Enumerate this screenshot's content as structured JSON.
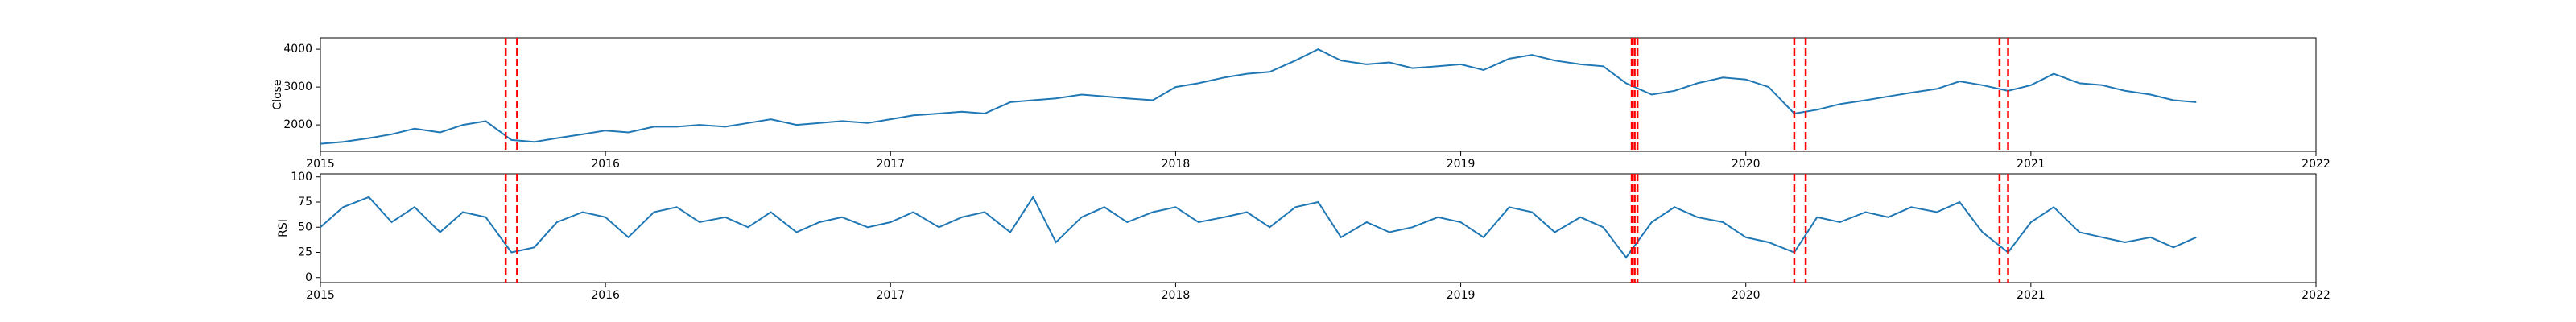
{
  "chart_data": [
    {
      "type": "line",
      "ylabel": "Close",
      "x": [
        2015.0,
        2015.08,
        2015.17,
        2015.25,
        2015.33,
        2015.42,
        2015.5,
        2015.58,
        2015.67,
        2015.75,
        2015.83,
        2015.92,
        2016.0,
        2016.08,
        2016.17,
        2016.25,
        2016.33,
        2016.42,
        2016.5,
        2016.58,
        2016.67,
        2016.75,
        2016.83,
        2016.92,
        2017.0,
        2017.08,
        2017.17,
        2017.25,
        2017.33,
        2017.42,
        2017.5,
        2017.58,
        2017.67,
        2017.75,
        2017.83,
        2017.92,
        2018.0,
        2018.08,
        2018.17,
        2018.25,
        2018.33,
        2018.42,
        2018.5,
        2018.58,
        2018.67,
        2018.75,
        2018.83,
        2018.92,
        2019.0,
        2019.08,
        2019.17,
        2019.25,
        2019.33,
        2019.42,
        2019.5,
        2019.58,
        2019.67,
        2019.75,
        2019.83,
        2019.92,
        2020.0,
        2020.08,
        2020.17,
        2020.25,
        2020.33,
        2020.42,
        2020.5,
        2020.58,
        2020.67,
        2020.75,
        2020.83,
        2020.92,
        2021.0,
        2021.08,
        2021.17,
        2021.25,
        2021.33,
        2021.42,
        2021.5,
        2021.58
      ],
      "series": [
        {
          "color": "#1f77b4",
          "values": [
            1500,
            1550,
            1650,
            1750,
            1900,
            1800,
            2000,
            2100,
            1600,
            1550,
            1650,
            1750,
            1850,
            1800,
            1950,
            1950,
            2000,
            1950,
            2050,
            2150,
            2000,
            2050,
            2100,
            2050,
            2150,
            2250,
            2300,
            2350,
            2300,
            2600,
            2650,
            2700,
            2800,
            2750,
            2700,
            2650,
            3000,
            3100,
            3250,
            3350,
            3400,
            3700,
            4000,
            3700,
            3600,
            3650,
            3500,
            3550,
            3600,
            3450,
            3750,
            3850,
            3700,
            3600,
            3550,
            3100,
            2800,
            2900,
            3100,
            3250,
            3200,
            3000,
            2300,
            2400,
            2550,
            2650,
            2750,
            2850,
            2950,
            3150,
            3050,
            2900,
            3050,
            3350,
            3100,
            3050,
            2900,
            2800,
            2650,
            2600
          ]
        }
      ],
      "vlines": [
        2015.65,
        2015.69,
        2019.6,
        2019.61,
        2019.62,
        2020.17,
        2020.21,
        2020.89,
        2020.92
      ],
      "vline_color": "red",
      "xlim": [
        2015,
        2022
      ],
      "xticks": [
        2015,
        2016,
        2017,
        2018,
        2019,
        2020,
        2021,
        2022
      ],
      "ylim": [
        1300,
        4300
      ],
      "yticks": [
        2000,
        3000,
        4000
      ]
    },
    {
      "type": "line",
      "ylabel": "RSI",
      "x": [
        2015.0,
        2015.08,
        2015.17,
        2015.25,
        2015.33,
        2015.42,
        2015.5,
        2015.58,
        2015.67,
        2015.75,
        2015.83,
        2015.92,
        2016.0,
        2016.08,
        2016.17,
        2016.25,
        2016.33,
        2016.42,
        2016.5,
        2016.58,
        2016.67,
        2016.75,
        2016.83,
        2016.92,
        2017.0,
        2017.08,
        2017.17,
        2017.25,
        2017.33,
        2017.42,
        2017.5,
        2017.58,
        2017.67,
        2017.75,
        2017.83,
        2017.92,
        2018.0,
        2018.08,
        2018.17,
        2018.25,
        2018.33,
        2018.42,
        2018.5,
        2018.58,
        2018.67,
        2018.75,
        2018.83,
        2018.92,
        2019.0,
        2019.08,
        2019.17,
        2019.25,
        2019.33,
        2019.42,
        2019.5,
        2019.58,
        2019.67,
        2019.75,
        2019.83,
        2019.92,
        2020.0,
        2020.08,
        2020.17,
        2020.25,
        2020.33,
        2020.42,
        2020.5,
        2020.58,
        2020.67,
        2020.75,
        2020.83,
        2020.92,
        2021.0,
        2021.08,
        2021.17,
        2021.25,
        2021.33,
        2021.42,
        2021.5,
        2021.58
      ],
      "series": [
        {
          "color": "#1f77b4",
          "values": [
            50,
            70,
            80,
            55,
            70,
            45,
            65,
            60,
            25,
            30,
            55,
            65,
            60,
            40,
            65,
            70,
            55,
            60,
            50,
            65,
            45,
            55,
            60,
            50,
            55,
            65,
            50,
            60,
            65,
            45,
            80,
            35,
            60,
            70,
            55,
            65,
            70,
            55,
            60,
            65,
            50,
            70,
            75,
            40,
            55,
            45,
            50,
            60,
            55,
            40,
            70,
            65,
            45,
            60,
            50,
            20,
            55,
            70,
            60,
            55,
            40,
            35,
            25,
            60,
            55,
            65,
            60,
            70,
            65,
            75,
            45,
            25,
            55,
            70,
            45,
            40,
            35,
            40,
            30,
            40
          ]
        }
      ],
      "vlines": [
        2015.65,
        2015.69,
        2019.6,
        2019.61,
        2019.62,
        2020.17,
        2020.21,
        2020.89,
        2020.92
      ],
      "vline_color": "red",
      "xlim": [
        2015,
        2022
      ],
      "xticks": [
        2015,
        2016,
        2017,
        2018,
        2019,
        2020,
        2021,
        2022
      ],
      "ylim": [
        -5,
        103
      ],
      "yticks": [
        0,
        25,
        50,
        75,
        100
      ]
    }
  ]
}
